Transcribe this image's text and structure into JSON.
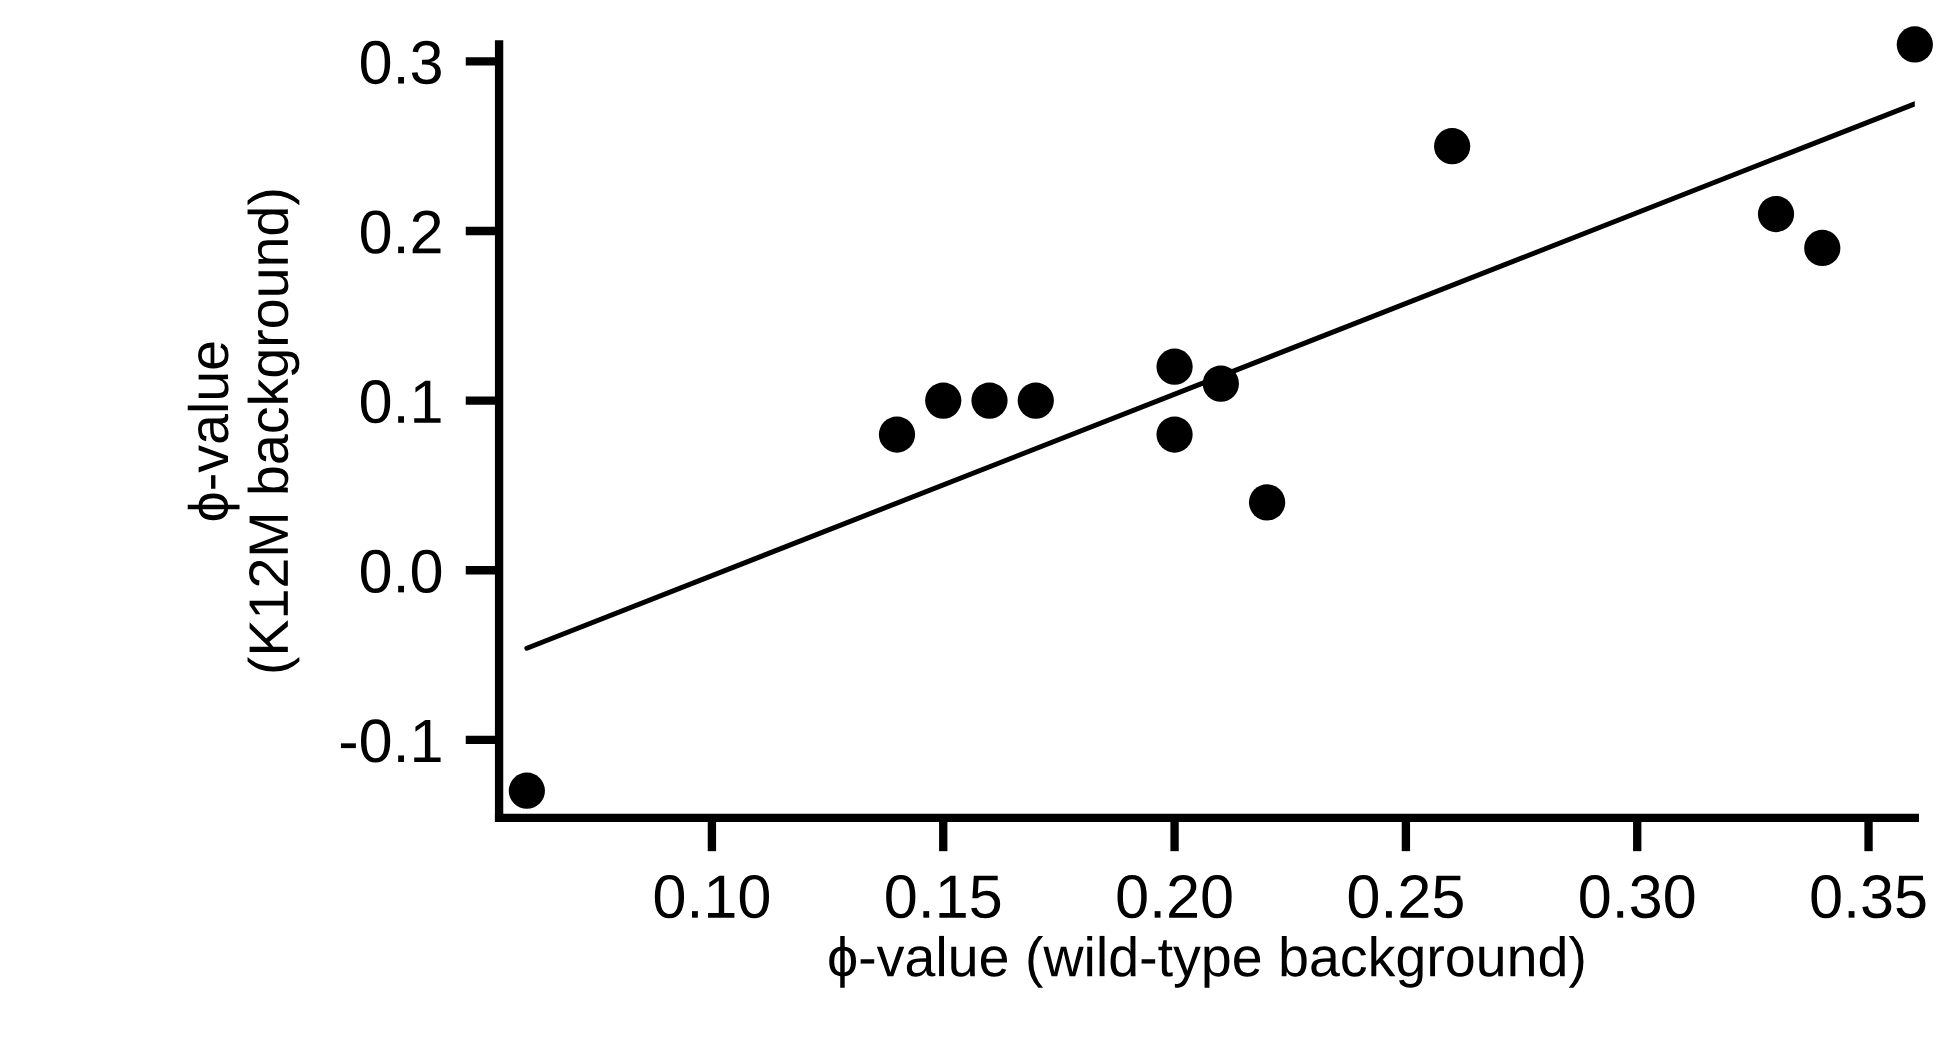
{
  "chart_data": {
    "type": "scatter",
    "xlabel": "ϕ-value (wild-type background)",
    "ylabel": "ϕ-value\n(K12M background)",
    "series": [
      {
        "color": "#000000",
        "marker": "circle",
        "x": [
          0.06,
          0.14,
          0.15,
          0.16,
          0.17,
          0.2,
          0.2,
          0.21,
          0.22,
          0.26,
          0.33,
          0.34,
          0.36
        ],
        "values": [
          -0.13,
          0.08,
          0.1,
          0.1,
          0.1,
          0.12,
          0.08,
          0.11,
          0.04,
          0.25,
          0.21,
          0.19,
          0.31
        ]
      },
      {
        "type": "line",
        "color": "#000000",
        "x": [
          0.06,
          0.36
        ],
        "values": [
          -0.046,
          0.275
        ]
      }
    ],
    "xlim": [
      0.054,
      0.36
    ],
    "ylim": [
      -0.146,
      0.31
    ],
    "xticks": [
      {
        "value": 0.1,
        "label": "0.10"
      },
      {
        "value": 0.15,
        "label": "0.15"
      },
      {
        "value": 0.2,
        "label": "0.20"
      },
      {
        "value": 0.25,
        "label": "0.25"
      },
      {
        "value": 0.3,
        "label": "0.30"
      },
      {
        "value": 0.35,
        "label": "0.35"
      }
    ],
    "yticks": [
      -0.1,
      {
        "value": 0.0,
        "label": "0.0"
      },
      0.1,
      0.2,
      0.3
    ],
    "grid": false,
    "legend": false
  }
}
